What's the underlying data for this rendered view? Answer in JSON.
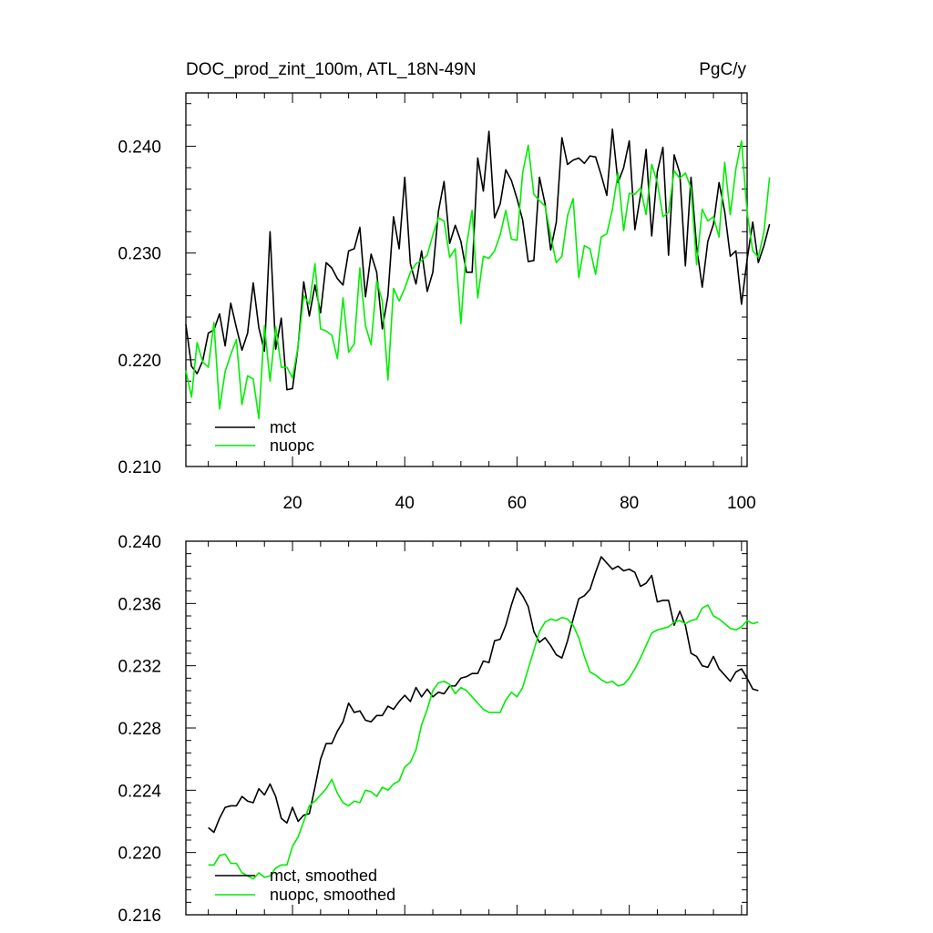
{
  "colors": {
    "mct": "#000000",
    "nuopc": "#00ee00"
  },
  "chart_data": [
    {
      "type": "line",
      "title": "DOC_prod_zint_100m, ATL_18N-49N",
      "units": "PgC/y",
      "xlim": [
        1,
        101
      ],
      "ylim": [
        0.21,
        0.245
      ],
      "xticks": [
        20,
        40,
        60,
        80,
        100
      ],
      "xtick_labels": [
        "20",
        "40",
        "60",
        "80",
        "100"
      ],
      "yticks": [
        0.21,
        0.22,
        0.23,
        0.24
      ],
      "ytick_labels": [
        "0.210",
        "0.220",
        "0.230",
        "0.240"
      ],
      "legend_position": "bottom-left",
      "grid": false,
      "x_start": 1,
      "series": [
        {
          "name": "mct",
          "color": "#000000",
          "values": [
            0.2233,
            0.2194,
            0.2187,
            0.2199,
            0.2225,
            0.2228,
            0.2243,
            0.2213,
            0.2253,
            0.223,
            0.2209,
            0.2225,
            0.2272,
            0.223,
            0.2208,
            0.232,
            0.221,
            0.2239,
            0.2172,
            0.2173,
            0.2213,
            0.2273,
            0.2241,
            0.227,
            0.2244,
            0.2291,
            0.2286,
            0.2276,
            0.227,
            0.2302,
            0.2304,
            0.2324,
            0.2259,
            0.2299,
            0.2282,
            0.2229,
            0.226,
            0.2334,
            0.2304,
            0.2371,
            0.229,
            0.2271,
            0.2302,
            0.2264,
            0.2282,
            0.2339,
            0.2367,
            0.2309,
            0.2326,
            0.2311,
            0.2282,
            0.2282,
            0.2389,
            0.2358,
            0.2414,
            0.2333,
            0.2346,
            0.2378,
            0.2368,
            0.2351,
            0.2331,
            0.2292,
            0.2293,
            0.2371,
            0.2346,
            0.2303,
            0.2329,
            0.2408,
            0.2383,
            0.2387,
            0.2389,
            0.2384,
            0.2391,
            0.239,
            0.2373,
            0.2354,
            0.2416,
            0.2366,
            0.238,
            0.2405,
            0.2322,
            0.2354,
            0.2397,
            0.2316,
            0.2376,
            0.2399,
            0.2298,
            0.2392,
            0.2375,
            0.2288,
            0.2371,
            0.2306,
            0.2268,
            0.2311,
            0.2327,
            0.2366,
            0.2339,
            0.2297,
            0.2302,
            0.2252,
            0.2294,
            0.2329,
            0.2291,
            0.2307,
            0.2327
          ]
        },
        {
          "name": "nuopc",
          "color": "#00ee00",
          "values": [
            0.219,
            0.2165,
            0.2216,
            0.2198,
            0.2193,
            0.2235,
            0.2154,
            0.2189,
            0.2205,
            0.2219,
            0.2158,
            0.2185,
            0.2182,
            0.2145,
            0.2232,
            0.218,
            0.2231,
            0.2193,
            0.2193,
            0.2183,
            0.2213,
            0.226,
            0.2252,
            0.229,
            0.2229,
            0.2227,
            0.2223,
            0.2201,
            0.2258,
            0.2207,
            0.2215,
            0.2286,
            0.2232,
            0.2214,
            0.2274,
            0.2255,
            0.2181,
            0.2267,
            0.2255,
            0.2267,
            0.2282,
            0.229,
            0.2293,
            0.2298,
            0.2317,
            0.2333,
            0.233,
            0.2296,
            0.2304,
            0.2234,
            0.2307,
            0.234,
            0.2258,
            0.2297,
            0.2295,
            0.2302,
            0.2317,
            0.234,
            0.2313,
            0.2312,
            0.2375,
            0.2401,
            0.2355,
            0.2349,
            0.2344,
            0.2316,
            0.2291,
            0.2297,
            0.2335,
            0.2351,
            0.2277,
            0.2307,
            0.2304,
            0.228,
            0.2315,
            0.2318,
            0.2341,
            0.2375,
            0.2321,
            0.2356,
            0.2355,
            0.2361,
            0.2336,
            0.2383,
            0.2366,
            0.2334,
            0.2338,
            0.2377,
            0.237,
            0.2375,
            0.2361,
            0.2289,
            0.2341,
            0.233,
            0.2334,
            0.2315,
            0.2385,
            0.2336,
            0.2379,
            0.2405,
            0.2338,
            0.2302,
            0.2296,
            0.232,
            0.2371
          ]
        }
      ]
    },
    {
      "type": "line",
      "title": "",
      "xlim": [
        1,
        101
      ],
      "ylim": [
        0.216,
        0.24
      ],
      "xticks": [
        20,
        40,
        60,
        80,
        100
      ],
      "yticks": [
        0.216,
        0.22,
        0.224,
        0.228,
        0.232,
        0.236,
        0.24
      ],
      "ytick_labels": [
        "0.216",
        "0.220",
        "0.224",
        "0.228",
        "0.232",
        "0.236",
        "0.240"
      ],
      "legend_position": "bottom-left",
      "grid": false,
      "x_start": 5,
      "series": [
        {
          "name": "mct, smoothed",
          "color": "#000000",
          "values": [
            0.2216,
            0.2213,
            0.2222,
            0.2229,
            0.223,
            0.223,
            0.2236,
            0.2233,
            0.2232,
            0.2241,
            0.2237,
            0.2244,
            0.2236,
            0.2222,
            0.2219,
            0.2229,
            0.222,
            0.2224,
            0.2225,
            0.2242,
            0.226,
            0.227,
            0.227,
            0.2278,
            0.2284,
            0.2296,
            0.229,
            0.2291,
            0.2285,
            0.2284,
            0.2288,
            0.2288,
            0.2294,
            0.2292,
            0.2297,
            0.2301,
            0.2297,
            0.2306,
            0.23,
            0.2305,
            0.23,
            0.2303,
            0.2302,
            0.2307,
            0.2307,
            0.2312,
            0.2313,
            0.2315,
            0.2315,
            0.2323,
            0.2322,
            0.2336,
            0.2337,
            0.2346,
            0.2359,
            0.237,
            0.2365,
            0.2358,
            0.2342,
            0.2335,
            0.2338,
            0.2333,
            0.2327,
            0.2325,
            0.2336,
            0.235,
            0.2363,
            0.2365,
            0.2369,
            0.238,
            0.239,
            0.2386,
            0.2382,
            0.2384,
            0.2381,
            0.2382,
            0.238,
            0.2371,
            0.2373,
            0.2378,
            0.2361,
            0.2362,
            0.2362,
            0.2346,
            0.2355,
            0.2346,
            0.2328,
            0.2326,
            0.232,
            0.2319,
            0.2326,
            0.2318,
            0.2314,
            0.231,
            0.2316,
            0.2318,
            0.2312,
            0.2305,
            0.2304
          ]
        },
        {
          "name": "nuopc, smoothed",
          "color": "#00ee00",
          "values": [
            0.2192,
            0.2192,
            0.2198,
            0.2199,
            0.2193,
            0.2193,
            0.2187,
            0.2185,
            0.2183,
            0.2187,
            0.2184,
            0.2185,
            0.219,
            0.2192,
            0.2192,
            0.2204,
            0.221,
            0.222,
            0.223,
            0.2233,
            0.2237,
            0.2241,
            0.2247,
            0.2238,
            0.2232,
            0.223,
            0.2233,
            0.2232,
            0.224,
            0.2239,
            0.2236,
            0.2242,
            0.224,
            0.2244,
            0.2246,
            0.2255,
            0.2258,
            0.2266,
            0.2282,
            0.2292,
            0.2304,
            0.2309,
            0.231,
            0.2308,
            0.2302,
            0.2306,
            0.2304,
            0.23,
            0.2296,
            0.2292,
            0.229,
            0.229,
            0.229,
            0.2298,
            0.2303,
            0.23,
            0.2306,
            0.2318,
            0.233,
            0.2342,
            0.2348,
            0.235,
            0.2349,
            0.2351,
            0.235,
            0.2346,
            0.2338,
            0.2326,
            0.2316,
            0.2314,
            0.2311,
            0.2309,
            0.231,
            0.2307,
            0.2308,
            0.2312,
            0.2318,
            0.2325,
            0.2333,
            0.2341,
            0.2343,
            0.2344,
            0.2345,
            0.2348,
            0.2349,
            0.2347,
            0.2349,
            0.235,
            0.2357,
            0.2359,
            0.2352,
            0.235,
            0.2347,
            0.2344,
            0.2343,
            0.2345,
            0.2349,
            0.2347,
            0.2348
          ]
        }
      ]
    }
  ]
}
